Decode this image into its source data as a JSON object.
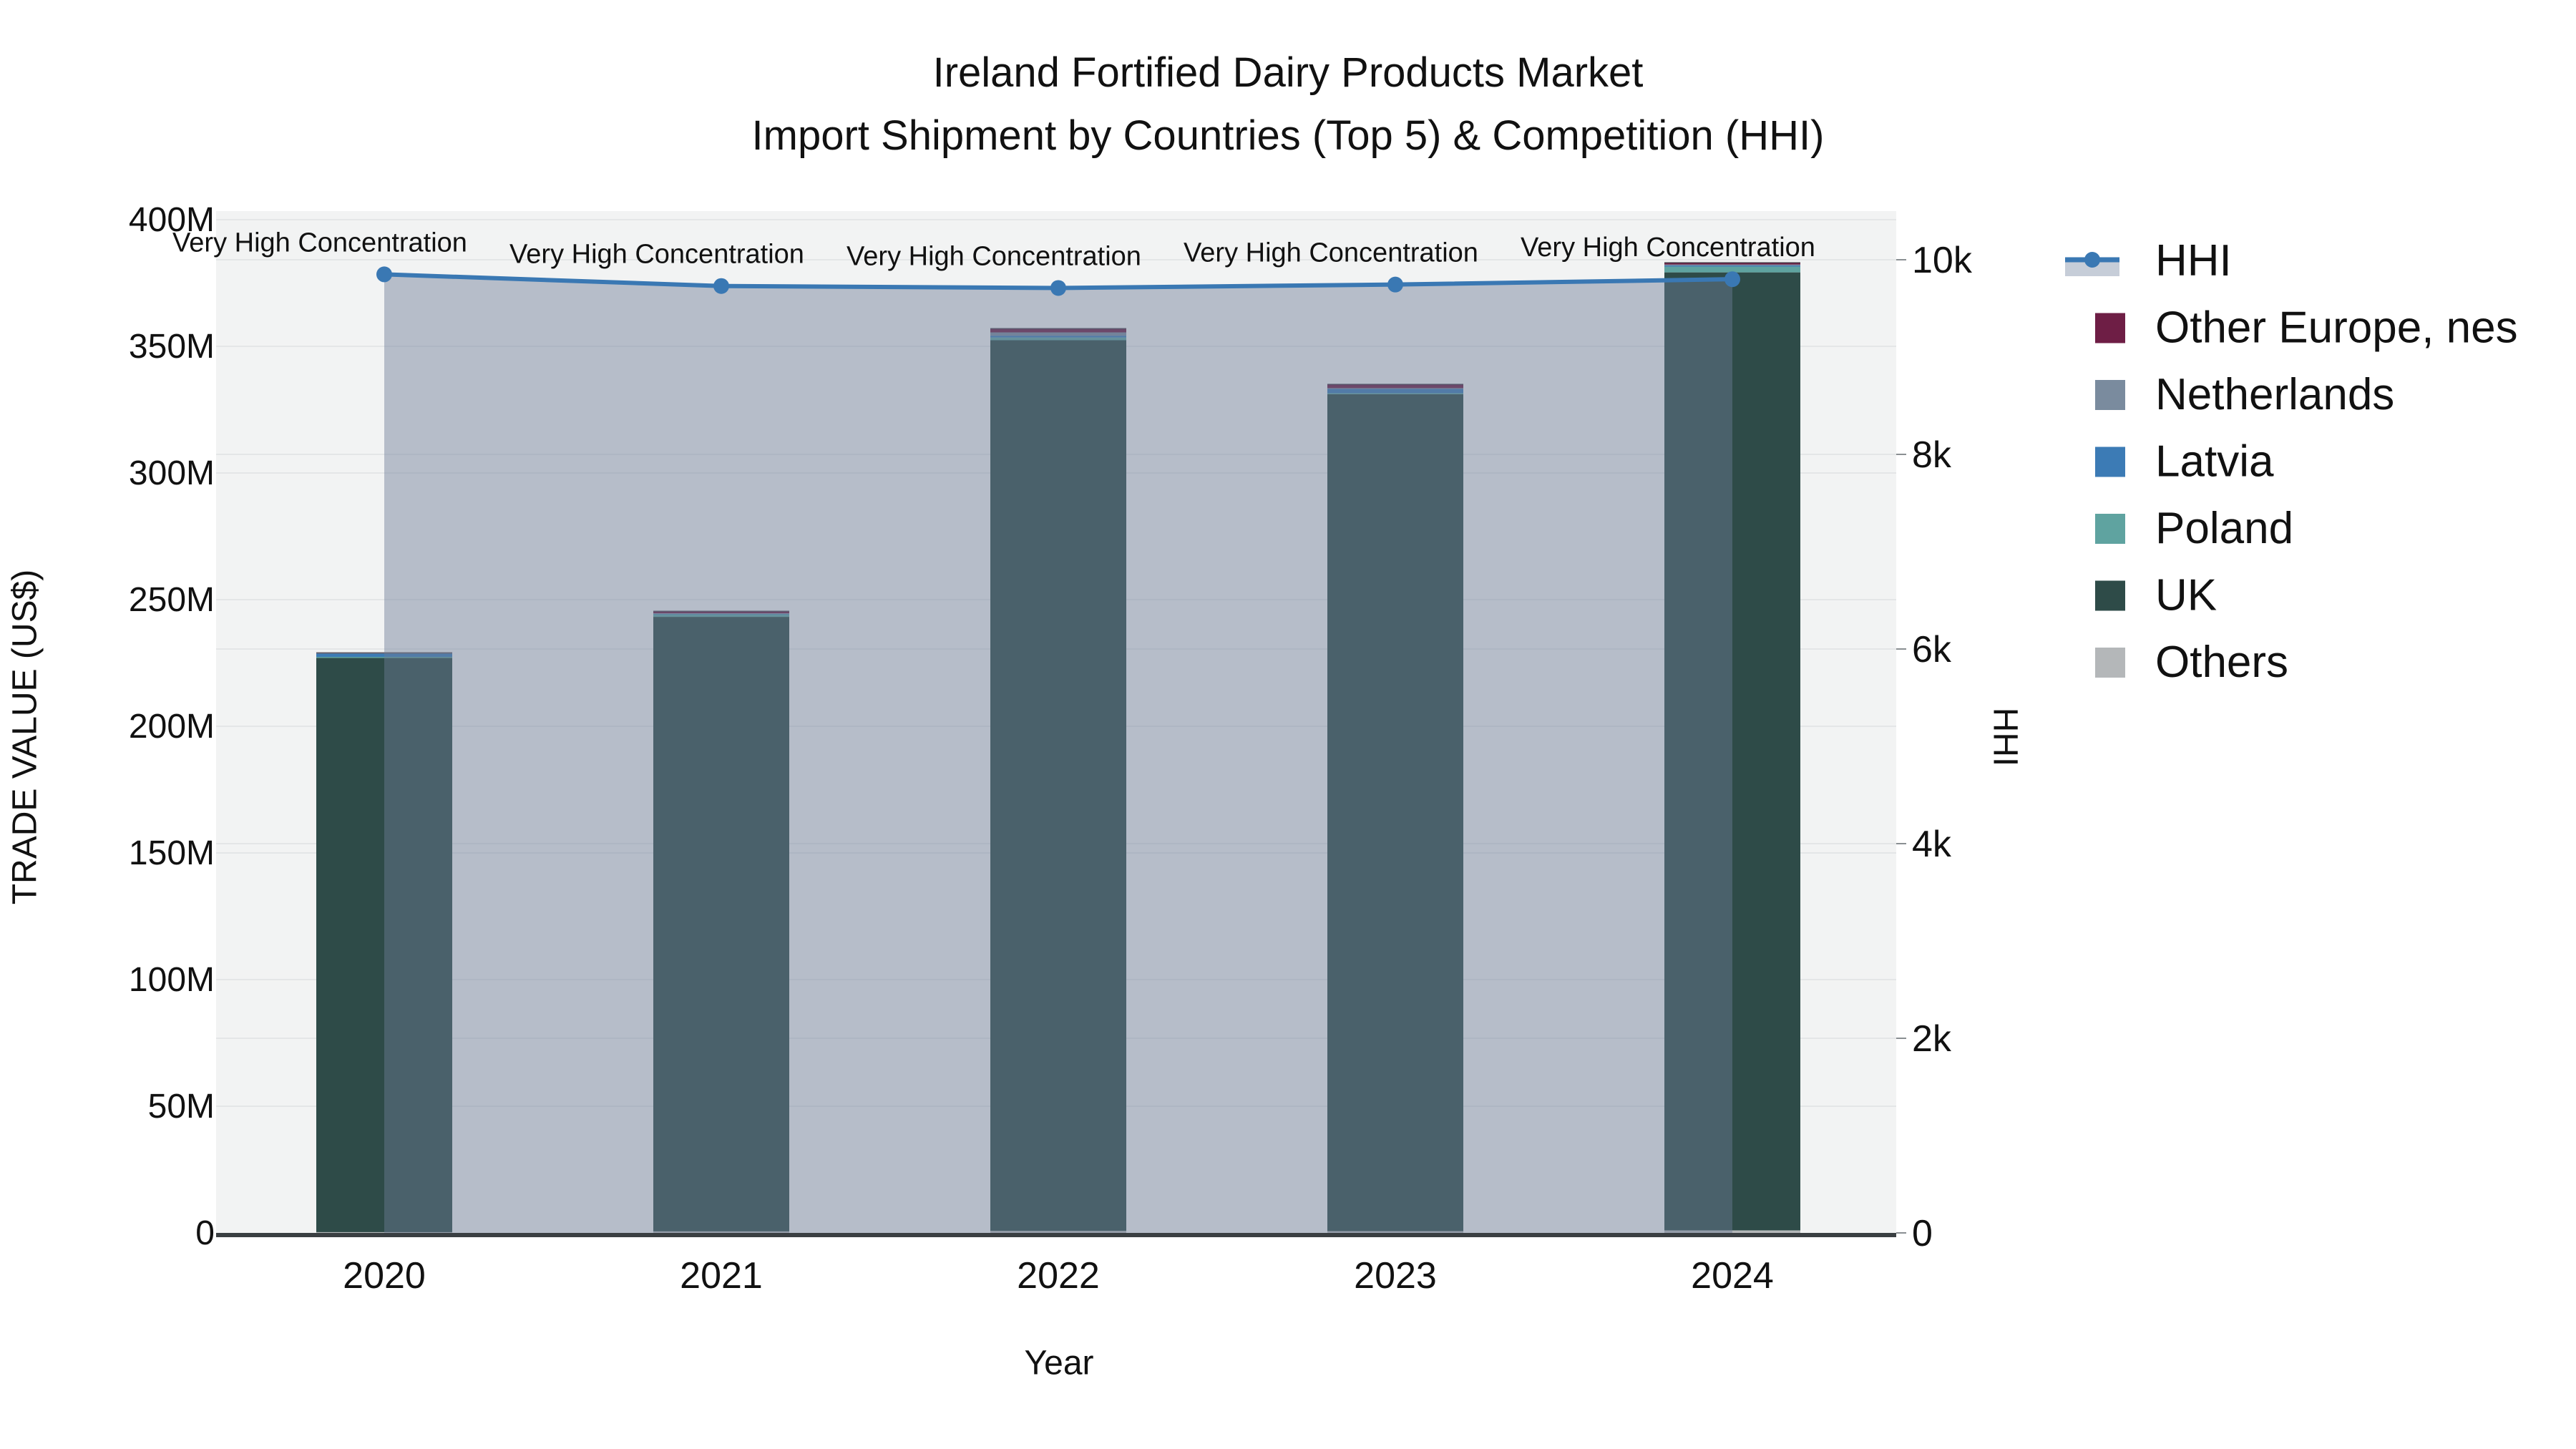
{
  "title": {
    "line1": "Ireland Fortified Dairy Products Market",
    "line2": "Import Shipment by Countries (Top 5) & Competition (HHI)"
  },
  "axes": {
    "x": {
      "title": "Year",
      "ticks": [
        "2020",
        "2021",
        "2022",
        "2023",
        "2024"
      ]
    },
    "y_left": {
      "title": "TRADE VALUE (US$)",
      "ticks": [
        "0",
        "50M",
        "100M",
        "150M",
        "200M",
        "250M",
        "300M",
        "350M",
        "400M"
      ],
      "tick_values": [
        0,
        50,
        100,
        150,
        200,
        250,
        300,
        350,
        400
      ]
    },
    "y_right": {
      "title": "HHI",
      "ticks": [
        "0",
        "2k",
        "4k",
        "6k",
        "8k",
        "10k"
      ],
      "tick_values": [
        0,
        2000,
        4000,
        6000,
        8000,
        10000
      ]
    }
  },
  "legend": {
    "items": [
      {
        "label": "HHI",
        "type": "line",
        "color": "#3a78b3"
      },
      {
        "label": "Other Europe, nes",
        "type": "swatch",
        "color": "#6e1e45"
      },
      {
        "label": "Netherlands",
        "type": "swatch",
        "color": "#7a8b9e"
      },
      {
        "label": "Latvia",
        "type": "swatch",
        "color": "#3c7bb5"
      },
      {
        "label": "Poland",
        "type": "swatch",
        "color": "#5fa3a0"
      },
      {
        "label": "UK",
        "type": "swatch",
        "color": "#2e4b48"
      },
      {
        "label": "Others",
        "type": "swatch",
        "color": "#b4b7b9"
      }
    ]
  },
  "chart_data": {
    "type": "bar+line",
    "title": "Ireland Fortified Dairy Products Market",
    "subtitle": "Import Shipment by Countries (Top 5) & Competition (HHI)",
    "xlabel": "Year",
    "ylabel": "TRADE VALUE (US$)",
    "ylabel_right": "HHI",
    "categories": [
      "2020",
      "2021",
      "2022",
      "2023",
      "2024"
    ],
    "bar_unit": "USD millions",
    "stack_order_bottom_to_top": [
      "Others",
      "UK",
      "Poland",
      "Latvia",
      "Netherlands",
      "Other Europe, nes"
    ],
    "series": [
      {
        "name": "Others",
        "color": "#b4b7b9",
        "values": [
          0.3,
          0.6,
          0.8,
          0.7,
          1.0
        ]
      },
      {
        "name": "UK",
        "color": "#2e4b48",
        "values": [
          226.7,
          242.6,
          351.6,
          330.4,
          378.2
        ]
      },
      {
        "name": "Poland",
        "color": "#5fa3a0",
        "values": [
          0.4,
          1.0,
          1.1,
          0.4,
          2.3
        ]
      },
      {
        "name": "Latvia",
        "color": "#3c7bb5",
        "values": [
          1.3,
          0.2,
          0.7,
          1.7,
          0.4
        ]
      },
      {
        "name": "Netherlands",
        "color": "#7a8b9e",
        "values": [
          0.2,
          0.2,
          1.3,
          0.3,
          0.4
        ]
      },
      {
        "name": "Other Europe, nes",
        "color": "#6e1e45",
        "values": [
          0.1,
          0.8,
          1.5,
          1.5,
          0.7
        ]
      }
    ],
    "bar_totals": [
      229.0,
      245.4,
      357.0,
      335.0,
      383.0
    ],
    "line_series": {
      "name": "HHI",
      "color": "#3a78b3",
      "fill_color": "rgba(108,124,150,0.45)",
      "values": [
        9850,
        9730,
        9710,
        9745,
        9800
      ]
    },
    "annotations": [
      {
        "text": "Very High Concentration",
        "category": "2020"
      },
      {
        "text": "Very High Concentration",
        "category": "2021"
      },
      {
        "text": "Very High Concentration",
        "category": "2022"
      },
      {
        "text": "Very High Concentration",
        "category": "2023"
      },
      {
        "text": "Very High Concentration",
        "category": "2024"
      }
    ],
    "ylim_left": [
      0,
      400
    ],
    "ylim_right": [
      0,
      10000
    ],
    "grid": true,
    "legend_position": "right"
  },
  "colors": {
    "plot_bg": "#f2f3f3",
    "grid": "#e4e6e7",
    "axis_line": "#3a3f42",
    "text": "#111111",
    "hhi_line": "#3a78b3",
    "hhi_fill": "rgba(108,124,150,0.45)",
    "legend_band": "#c6cdd8"
  }
}
